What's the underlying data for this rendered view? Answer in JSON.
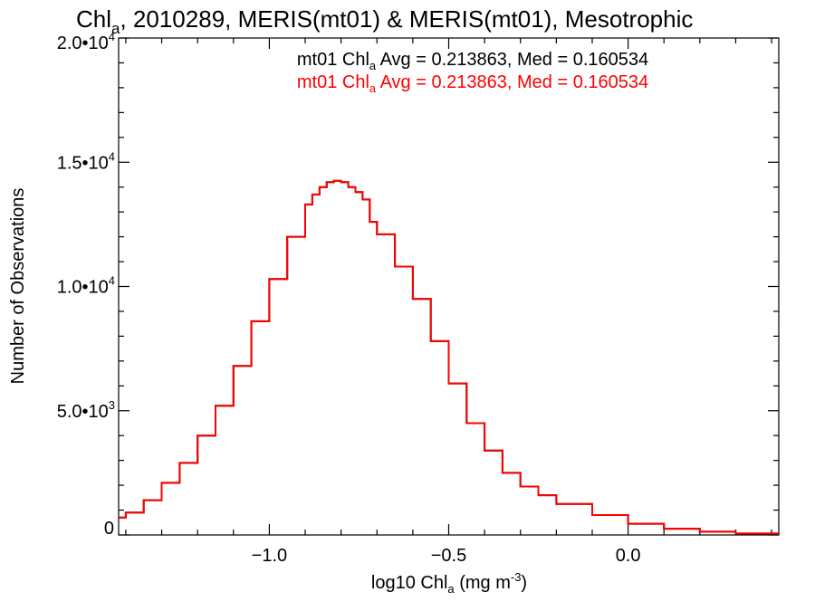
{
  "chart_data": {
    "type": "line",
    "title": {
      "pre": "Chl",
      "sub": "a",
      "post": ", 2010289, MERIS(mt01) & MERIS(mt01), Mesotrophic"
    },
    "xlabel": {
      "pre": "log10 Chl",
      "sub": "a",
      "mid": " (mg m",
      "sup": "-3",
      "post": ")"
    },
    "ylabel": "Number of Observations",
    "xlim": [
      -1.42,
      0.42
    ],
    "ylim": [
      0,
      20000
    ],
    "x_ticks": [
      {
        "value": -1.0,
        "label": "−1.0"
      },
      {
        "value": -0.5,
        "label": "−0.5"
      },
      {
        "value": 0.0,
        "label": "0.0"
      }
    ],
    "y_ticks": [
      {
        "value": 0,
        "label": "0",
        "exp": ""
      },
      {
        "value": 5000,
        "label": "5.0•10",
        "exp": "3"
      },
      {
        "value": 10000,
        "label": "1.0•10",
        "exp": "4"
      },
      {
        "value": 15000,
        "label": "1.5•10",
        "exp": "4"
      },
      {
        "value": 20000,
        "label": "2.0•10",
        "exp": "4"
      }
    ],
    "annotations": [
      {
        "pre": "mt01 Chl",
        "sub": "a",
        "post": " Avg = 0.213863, Med = 0.160534",
        "color": "#000000"
      },
      {
        "pre": "mt01 Chl",
        "sub": "a",
        "post": " Avg = 0.213863, Med = 0.160534",
        "color": "#ff0000"
      }
    ],
    "series": [
      {
        "color": "#ff0000",
        "step": "post",
        "x": [
          -1.42,
          -1.4,
          -1.35,
          -1.3,
          -1.25,
          -1.2,
          -1.15,
          -1.1,
          -1.05,
          -1.0,
          -0.95,
          -0.9,
          -0.88,
          -0.86,
          -0.84,
          -0.82,
          -0.8,
          -0.78,
          -0.76,
          -0.74,
          -0.72,
          -0.7,
          -0.65,
          -0.6,
          -0.55,
          -0.5,
          -0.45,
          -0.4,
          -0.35,
          -0.3,
          -0.25,
          -0.2,
          -0.1,
          0.0,
          0.1,
          0.2,
          0.3,
          0.42
        ],
        "y": [
          700,
          900,
          1400,
          2100,
          2900,
          4000,
          5200,
          6800,
          8600,
          10300,
          12000,
          13300,
          13700,
          14000,
          14200,
          14250,
          14200,
          14000,
          13800,
          13500,
          12600,
          12100,
          10800,
          9500,
          7800,
          6100,
          4500,
          3400,
          2500,
          1950,
          1600,
          1250,
          800,
          450,
          250,
          130,
          60,
          20
        ]
      }
    ]
  }
}
